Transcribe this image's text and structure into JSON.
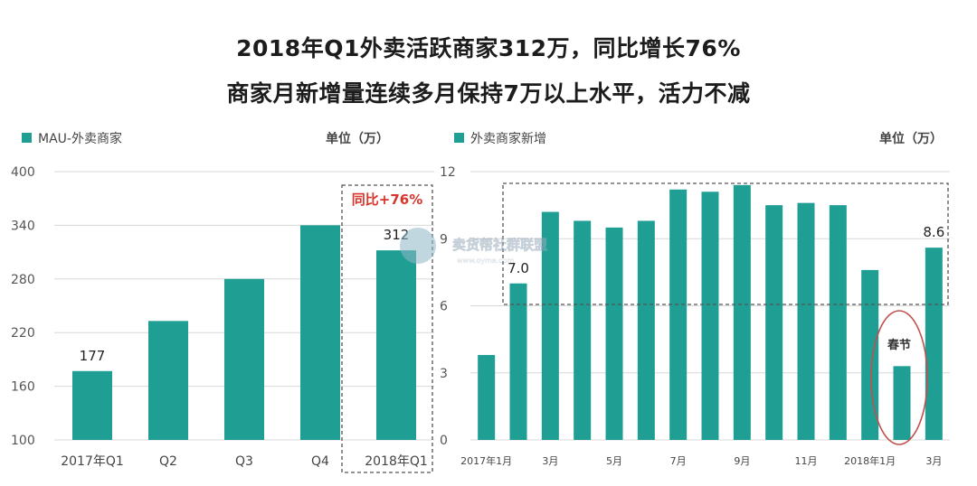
{
  "header": {
    "title_line1": "2018年Q1外卖活跃商家312万，同比增长76%",
    "title_line2": "商家月新增量连续多月保持7万以上水平，活力不减"
  },
  "watermark": {
    "text": "卖货帮社群联盟",
    "url": "www.oyma.com"
  },
  "colors": {
    "bar": "#1f9e94",
    "grid": "#d8d8d8",
    "highlight": "#d7352c",
    "dash": "#555555",
    "ellipse": "#c0504d"
  },
  "chart_data": [
    {
      "type": "bar",
      "legend": "MAU-外卖商家",
      "unit_label": "单位（万）",
      "categories": [
        "2017年Q1",
        "Q2",
        "Q3",
        "Q4",
        "2018年Q1"
      ],
      "values": [
        177,
        233,
        280,
        340,
        312
      ],
      "data_labels": [
        "177",
        "",
        "",
        "",
        "312"
      ],
      "yticks": [
        "100",
        "160",
        "220",
        "280",
        "340",
        "400"
      ],
      "ylim": [
        100,
        400
      ],
      "grid": true,
      "legend_position": "top-left",
      "annotation": "同比+76%"
    },
    {
      "type": "bar",
      "legend": "外卖商家新增",
      "unit_label": "单位（万）",
      "categories": [
        "2017年1月",
        "",
        "3月",
        "",
        "5月",
        "",
        "7月",
        "",
        "9月",
        "",
        "11月",
        "",
        "2018年1月",
        "",
        "3月"
      ],
      "values": [
        3.8,
        7.0,
        10.2,
        9.8,
        9.5,
        9.8,
        11.2,
        11.1,
        11.4,
        10.5,
        10.6,
        10.5,
        7.6,
        3.3,
        8.6
      ],
      "data_labels": [
        "",
        "7.0",
        "",
        "",
        "",
        "",
        "",
        "",
        "",
        "",
        "",
        "",
        "",
        "",
        "8.6"
      ],
      "yticks": [
        "0",
        "3",
        "6",
        "9",
        "12"
      ],
      "ylim": [
        0,
        12
      ],
      "grid": true,
      "legend_position": "top-left",
      "annotation": "春节"
    }
  ]
}
